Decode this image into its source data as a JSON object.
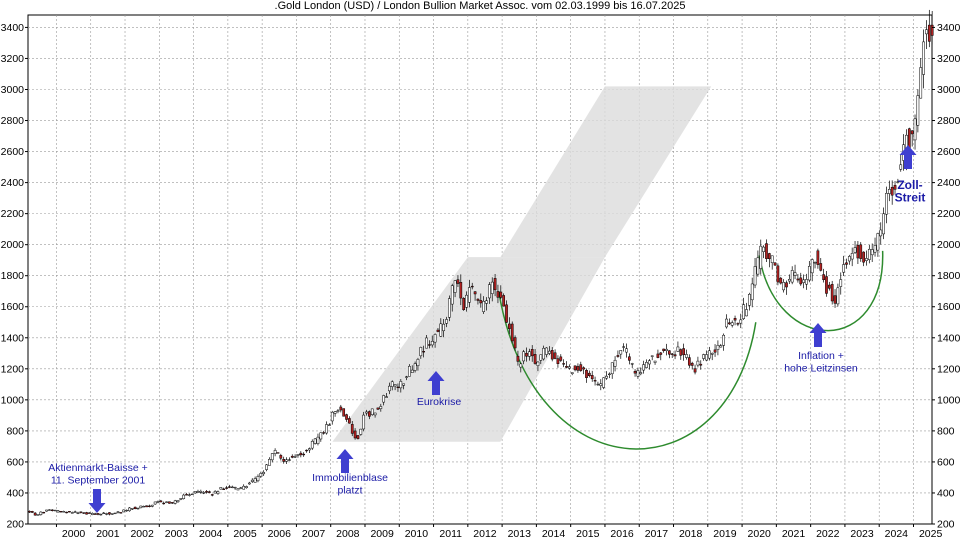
{
  "chart_data": {
    "type": "candlestick",
    "title": ".Gold London (USD) / London Bullion Market Assoc. vom 02.03.1999 bis 16.07.2025",
    "xlabel": "",
    "ylabel": "",
    "ylim": [
      200,
      3480
    ],
    "y_ticks": [
      200,
      400,
      600,
      800,
      1000,
      1200,
      1400,
      1600,
      1800,
      2000,
      2200,
      2400,
      2600,
      2800,
      3000,
      3200,
      3400
    ],
    "y_axis_both_sides": true,
    "grid": "dashed",
    "x_range": [
      1999.17,
      2025.54
    ],
    "x_ticks": [
      2000,
      2001,
      2002,
      2003,
      2004,
      2005,
      2006,
      2007,
      2008,
      2009,
      2010,
      2011,
      2012,
      2013,
      2014,
      2015,
      2016,
      2017,
      2018,
      2019,
      2020,
      2021,
      2022,
      2023,
      2024,
      2025
    ],
    "up_color": "#ffffff",
    "down_color": "#b22222",
    "price_path": [
      [
        1999.17,
        287
      ],
      [
        1999.45,
        258
      ],
      [
        1999.8,
        292
      ],
      [
        2000.1,
        280
      ],
      [
        2000.5,
        275
      ],
      [
        2000.9,
        268
      ],
      [
        2001.2,
        262
      ],
      [
        2001.6,
        270
      ],
      [
        2001.9,
        278
      ],
      [
        2002.3,
        305
      ],
      [
        2002.7,
        315
      ],
      [
        2003.0,
        345
      ],
      [
        2003.4,
        330
      ],
      [
        2003.8,
        390
      ],
      [
        2004.2,
        405
      ],
      [
        2004.6,
        395
      ],
      [
        2004.95,
        440
      ],
      [
        2005.4,
        425
      ],
      [
        2005.8,
        480
      ],
      [
        2006.15,
        560
      ],
      [
        2006.4,
        680
      ],
      [
        2006.6,
        610
      ],
      [
        2006.95,
        630
      ],
      [
        2007.3,
        670
      ],
      [
        2007.7,
        760
      ],
      [
        2007.95,
        830
      ],
      [
        2008.2,
        960
      ],
      [
        2008.5,
        880
      ],
      [
        2008.8,
        730
      ],
      [
        2009.0,
        900
      ],
      [
        2009.4,
        930
      ],
      [
        2009.8,
        1100
      ],
      [
        2010.1,
        1100
      ],
      [
        2010.45,
        1230
      ],
      [
        2010.8,
        1360
      ],
      [
        2011.1,
        1420
      ],
      [
        2011.4,
        1510
      ],
      [
        2011.65,
        1800
      ],
      [
        2011.9,
        1610
      ],
      [
        2012.15,
        1720
      ],
      [
        2012.45,
        1590
      ],
      [
        2012.75,
        1760
      ],
      [
        2012.95,
        1680
      ],
      [
        2013.3,
        1420
      ],
      [
        2013.5,
        1230
      ],
      [
        2013.8,
        1320
      ],
      [
        2014.0,
        1230
      ],
      [
        2014.3,
        1320
      ],
      [
        2014.6,
        1280
      ],
      [
        2014.9,
        1190
      ],
      [
        2015.2,
        1210
      ],
      [
        2015.5,
        1160
      ],
      [
        2015.9,
        1070
      ],
      [
        2016.3,
        1250
      ],
      [
        2016.6,
        1340
      ],
      [
        2016.95,
        1150
      ],
      [
        2017.3,
        1250
      ],
      [
        2017.7,
        1300
      ],
      [
        2017.95,
        1290
      ],
      [
        2018.2,
        1330
      ],
      [
        2018.65,
        1200
      ],
      [
        2018.95,
        1280
      ],
      [
        2019.3,
        1300
      ],
      [
        2019.6,
        1500
      ],
      [
        2019.95,
        1520
      ],
      [
        2020.2,
        1620
      ],
      [
        2020.6,
        1980
      ],
      [
        2020.95,
        1880
      ],
      [
        2021.2,
        1720
      ],
      [
        2021.5,
        1800
      ],
      [
        2021.9,
        1780
      ],
      [
        2022.2,
        1950
      ],
      [
        2022.5,
        1730
      ],
      [
        2022.75,
        1650
      ],
      [
        2022.95,
        1820
      ],
      [
        2023.3,
        1990
      ],
      [
        2023.6,
        1920
      ],
      [
        2023.85,
        1950
      ],
      [
        2024.05,
        2060
      ],
      [
        2024.3,
        2330
      ],
      [
        2024.6,
        2450
      ],
      [
        2024.85,
        2700
      ],
      [
        2025.0,
        2650
      ],
      [
        2025.2,
        3050
      ],
      [
        2025.35,
        3350
      ],
      [
        2025.54,
        3340
      ]
    ],
    "annotations": [
      {
        "lines": [
          "Aktienmarkt-Baisse +",
          "11. September 2001"
        ],
        "style": "normal"
      },
      {
        "lines": [
          "Immobilienblase",
          "platzt"
        ],
        "style": "normal"
      },
      {
        "lines": [
          "Eurokrise"
        ],
        "style": "normal"
      },
      {
        "lines": [
          "Inflation +",
          "hohe Leitzinsen"
        ],
        "style": "normal"
      },
      {
        "lines": [
          "Zoll-",
          "Streit"
        ],
        "style": "bold"
      }
    ],
    "arrow_color": "#3f3fd0",
    "trend_band_color": "#dcdcdc",
    "curve_color": "#2e8b2e"
  }
}
